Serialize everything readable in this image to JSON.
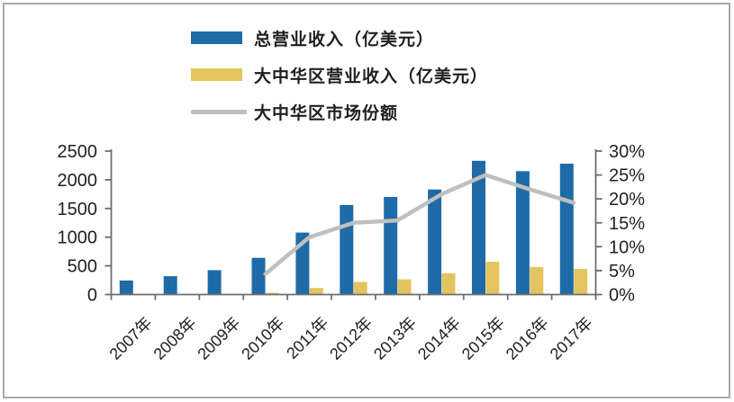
{
  "page": {
    "background": "#ffffff",
    "border_color": "#a9a9a9"
  },
  "colors": {
    "total_revenue_bar": "#1e6ba8",
    "greater_china_bar": "#e3c45f",
    "market_share_line": "#bfbfbf",
    "axis": "#6e6e6e",
    "text": "#1f1f1f"
  },
  "legend": {
    "items": [
      {
        "label": "总营业收入（亿美元）",
        "marker": "bar",
        "color": "#1e6ba8"
      },
      {
        "label": "大中华区营业收入（亿美元）",
        "marker": "bar",
        "color": "#e3c45f"
      },
      {
        "label": "大中华区市场份额",
        "marker": "line",
        "color": "#bfbfbf"
      }
    ]
  },
  "chart_data": {
    "type": "bar+line combo, dual axis",
    "title": "",
    "categories": [
      "2007年",
      "2008年",
      "2009年",
      "2010年",
      "2011年",
      "2012年",
      "2013年",
      "2014年",
      "2015年",
      "2016年",
      "2017年"
    ],
    "series": [
      {
        "name": "总营业收入（亿美元）",
        "type": "bar",
        "axis": "left",
        "color": "#1e6ba8",
        "values": [
          245,
          320,
          425,
          640,
          1080,
          1560,
          1700,
          1830,
          2330,
          2150,
          2280
        ]
      },
      {
        "name": "大中华区营业收入（亿美元）",
        "type": "bar",
        "axis": "left",
        "color": "#e3c45f",
        "values": [
          null,
          null,
          null,
          30,
          115,
          220,
          265,
          370,
          570,
          480,
          445
        ]
      },
      {
        "name": "大中华区市场份额",
        "type": "line",
        "axis": "right",
        "color": "#bfbfbf",
        "values": [
          null,
          null,
          null,
          4.3,
          12.0,
          15.0,
          15.5,
          21.0,
          25.0,
          22.0,
          19.2
        ]
      }
    ],
    "left_axis": {
      "min": 0,
      "max": 2500,
      "step": 500,
      "ticks": [
        "0",
        "500",
        "1000",
        "1500",
        "2000",
        "2500"
      ]
    },
    "right_axis": {
      "min": 0,
      "max": 30,
      "step": 5,
      "ticks": [
        "0%",
        "5%",
        "10%",
        "15%",
        "20%",
        "25%",
        "30%"
      ]
    },
    "grid": false,
    "legend_position": "top-center",
    "x_label_rotation_deg": -45
  }
}
